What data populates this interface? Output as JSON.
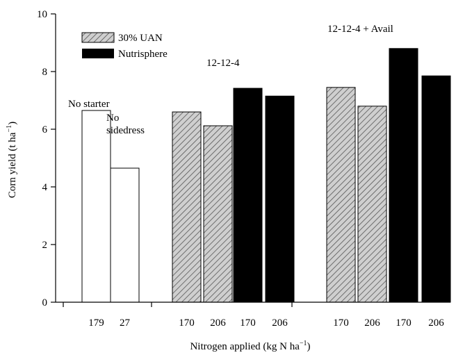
{
  "chart_data": {
    "type": "bar",
    "xlabel": "Nitrogen applied (kg N ha",
    "xlabel_sup": "−1",
    "xlabel_end": ")",
    "ylabel": "Corn yield (t ha",
    "ylabel_sup": "−1",
    "ylabel_end": ")",
    "ylim": [
      0,
      10
    ],
    "yticks": [
      0,
      2,
      4,
      6,
      8,
      10
    ],
    "grid": false,
    "legend_position": "top-left",
    "legend": [
      {
        "label": "30% UAN",
        "fill": "hatch"
      },
      {
        "label": "Nutrisphere",
        "fill": "solid"
      }
    ],
    "bars": [
      {
        "category": "179",
        "value": 6.65,
        "fill": "open"
      },
      {
        "category": "27",
        "value": 4.65,
        "fill": "open"
      },
      {
        "category": "170",
        "value": 6.6,
        "fill": "hatch"
      },
      {
        "category": "206",
        "value": 6.12,
        "fill": "hatch"
      },
      {
        "category": "170",
        "value": 7.42,
        "fill": "solid"
      },
      {
        "category": "206",
        "value": 7.15,
        "fill": "solid"
      },
      {
        "category": "170",
        "value": 7.45,
        "fill": "hatch"
      },
      {
        "category": "206",
        "value": 6.8,
        "fill": "hatch"
      },
      {
        "category": "170",
        "value": 8.8,
        "fill": "solid"
      },
      {
        "category": "206",
        "value": 7.85,
        "fill": "solid"
      }
    ],
    "annotations": [
      {
        "text": "No starter"
      },
      {
        "text": "No"
      },
      {
        "text": "sidedress"
      },
      {
        "text": "12-12-4"
      },
      {
        "text": "12-12-4 + Avail"
      }
    ]
  },
  "colors": {
    "solid": "#000000",
    "open": "#ffffff",
    "hatch_bg": "#cfcfcf",
    "hatch_line": "#555555",
    "axis": "#000000"
  }
}
